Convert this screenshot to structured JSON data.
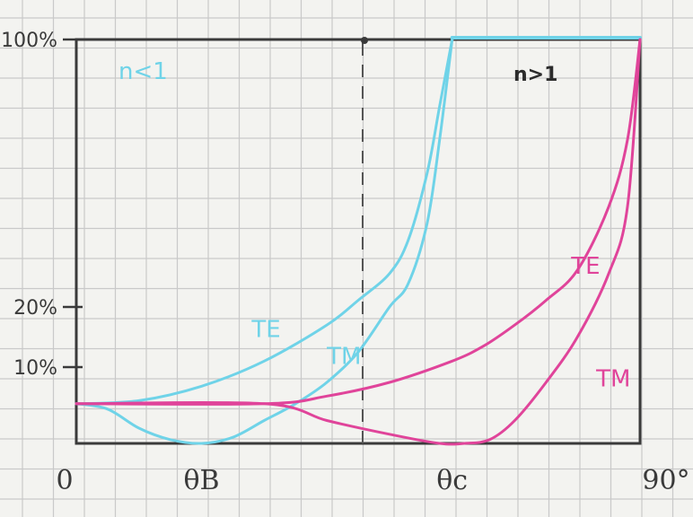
{
  "chart_data": {
    "type": "line",
    "xlabel": "",
    "ylabel": "",
    "x_tick_labels": [
      "0",
      "θB",
      "θc",
      "90°"
    ],
    "y_tick_labels": [
      "10%",
      "20%",
      "100%"
    ],
    "annotations": {
      "left_region": "n<1",
      "right_region": "n>1"
    },
    "xlim": [
      0,
      90
    ],
    "y_breakpoints": [
      0,
      10,
      20,
      100
    ],
    "colors": {
      "n_less_than_1": "#6fd3e8",
      "n_greater_than_1": "#e0449a",
      "frame": "#3a3a3a",
      "grid": "#c9c9c9"
    },
    "series": [
      {
        "name": "TE",
        "group": "n<1",
        "x": [
          0,
          10,
          20,
          30,
          40,
          45,
          50,
          53,
          56,
          58,
          60
        ],
        "y": [
          5.2,
          5.6,
          7.5,
          11,
          17,
          22,
          30,
          40,
          60,
          80,
          100
        ]
      },
      {
        "name": "TM",
        "group": "n<1",
        "x": [
          0,
          5,
          10,
          15,
          20,
          25,
          30,
          35,
          40,
          45,
          50,
          53,
          56,
          58,
          60
        ],
        "y": [
          5.2,
          4.5,
          2,
          0.5,
          0,
          0.8,
          3,
          5.2,
          8,
          12.5,
          20,
          27,
          45,
          70,
          100
        ]
      },
      {
        "name": "TE",
        "group": "n>1",
        "x": [
          0,
          30,
          40,
          50,
          60,
          65,
          70,
          75,
          80,
          85,
          88,
          90
        ],
        "y": [
          5.2,
          5.2,
          6.2,
          8,
          11,
          13.5,
          17,
          22,
          31,
          50,
          70,
          100
        ]
      },
      {
        "name": "TM",
        "group": "n>1",
        "x": [
          0,
          30,
          40,
          50,
          58,
          62,
          66,
          70,
          75,
          80,
          85,
          88,
          90
        ],
        "y": [
          5.2,
          5.2,
          3,
          1.2,
          0,
          0,
          0.5,
          3,
          8,
          15,
          30,
          50,
          100
        ]
      }
    ],
    "series_labels": [
      {
        "text": "TE",
        "group": "n<1",
        "x": 28,
        "y": 15
      },
      {
        "text": "TM",
        "group": "n<1",
        "x": 40,
        "y": 10.5
      },
      {
        "text": "TE",
        "group": "n>1",
        "x": 79,
        "y": 30
      },
      {
        "text": "TM",
        "group": "n>1",
        "x": 83,
        "y": 7.5
      }
    ]
  }
}
